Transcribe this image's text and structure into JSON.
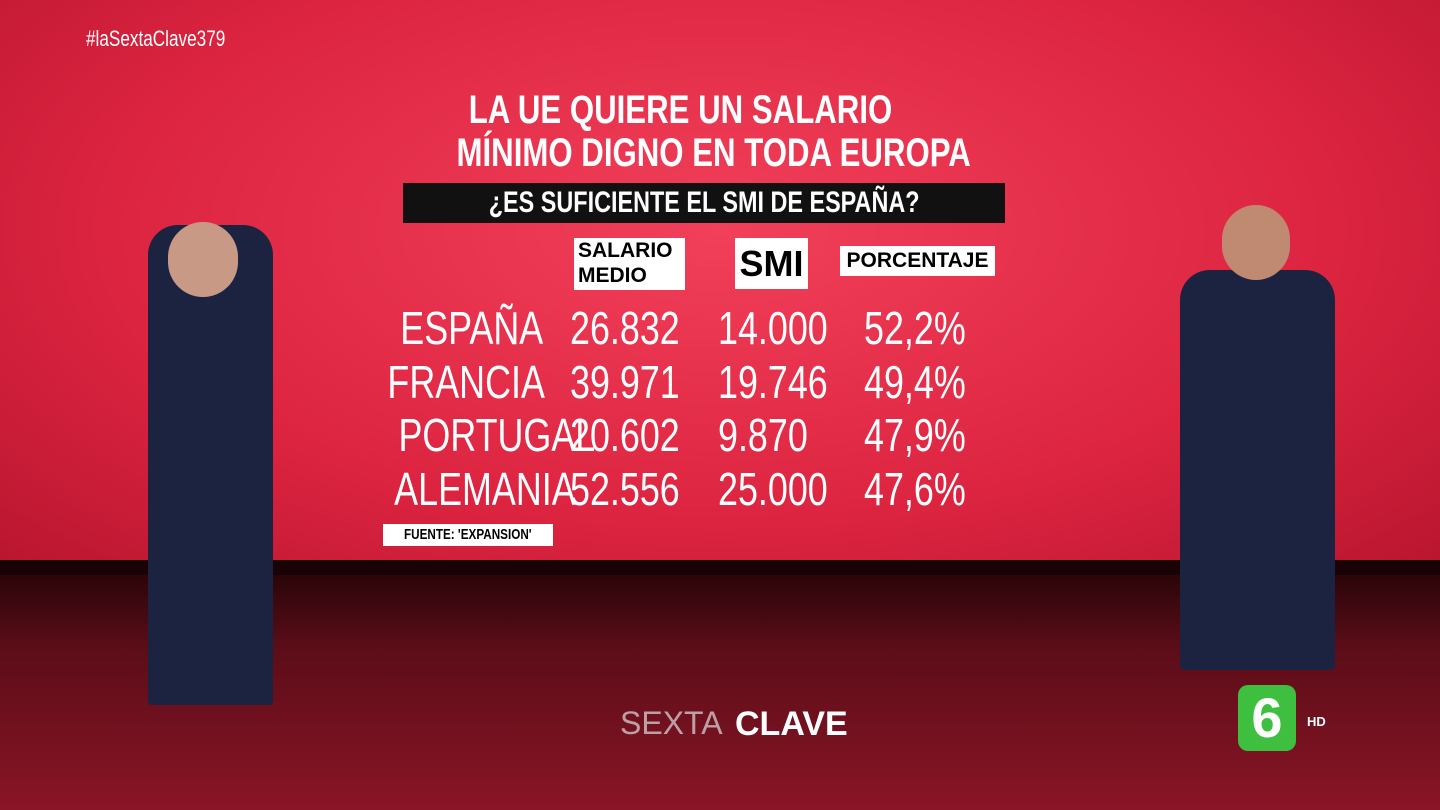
{
  "hashtag": "#laSextaClave379",
  "title": [
    "LA UE QUIERE UN SALARIO",
    "MÍNIMO DIGNO EN TODA EUROPA"
  ],
  "subtitle": "¿ES SUFICIENTE EL SMI DE ESPAÑA?",
  "table": {
    "headers": [
      "SALARIO MEDIO",
      "SMI",
      "PORCENTAJE"
    ],
    "rows": [
      [
        "ESPAÑA",
        "26.832",
        "14.000",
        "52,2%"
      ],
      [
        "FRANCIA",
        "39.971",
        "19.746",
        "49,4%"
      ],
      [
        "PORTUGAL",
        "20.602",
        "9.870",
        "47,9%"
      ],
      [
        "ALEMANIA",
        "52.556",
        "25.000",
        "47,6%"
      ]
    ]
  },
  "source": "FUENTE: 'EXPANSION'",
  "program_logo": [
    "SEXTA",
    "CLAVE"
  ],
  "channel_logo": "6",
  "hd": "HD"
}
